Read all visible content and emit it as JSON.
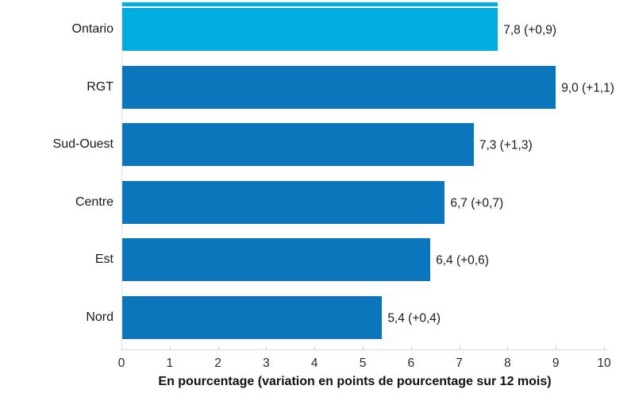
{
  "colors": {
    "highlight_bar": "#00ACE0",
    "default_bar": "#0B76BC",
    "text": "#1a1a1a",
    "axis_line": "#d9d9d9"
  },
  "chart_data": {
    "type": "bar",
    "orientation": "horizontal",
    "title": "",
    "categories": [
      "Ontario",
      "RGT",
      "Sud-Ouest",
      "Centre",
      "Est",
      "Nord"
    ],
    "values": [
      7.8,
      9.0,
      7.3,
      6.7,
      6.4,
      5.4
    ],
    "changes": [
      0.9,
      1.1,
      1.3,
      0.7,
      0.6,
      0.4
    ],
    "data_labels": [
      "7,8 (+0,9)",
      "9,0 (+1,1)",
      "7,3 (+1,3)",
      "6,7 (+0,7)",
      "6,4 (+0,6)",
      "5,4 (+0,4)"
    ],
    "bar_colors": [
      "#00ACE0",
      "#0B76BC",
      "#0B76BC",
      "#0B76BC",
      "#0B76BC",
      "#0B76BC"
    ],
    "xlabel": "En pourcentage (variation en points de pourcentage sur 12 mois)",
    "xlim": [
      0,
      10
    ],
    "xticks": [
      "0",
      "1",
      "2",
      "3",
      "4",
      "5",
      "6",
      "7",
      "8",
      "9",
      "10"
    ],
    "grid": false,
    "legend": "none"
  }
}
